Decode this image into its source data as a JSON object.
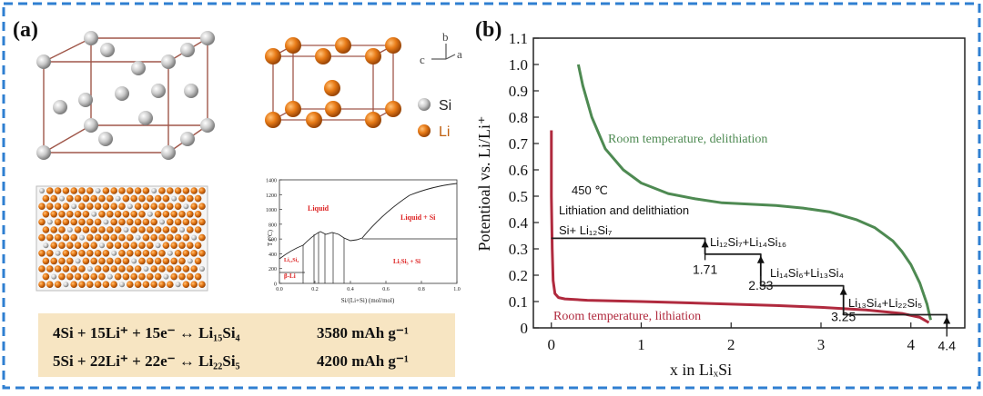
{
  "panel_a": {
    "label": "(a)",
    "axes_labels": {
      "b": "b",
      "c": "c",
      "a": "a"
    },
    "legend": {
      "si": "Si",
      "li": "Li"
    },
    "phase_diagram": {
      "ylabel": "T (°C)",
      "xlabel": "Si/(Li+Si) (mol/mol)",
      "yticks": [
        "0",
        "200",
        "400",
        "600",
        "800",
        "1000",
        "1200",
        "1400"
      ],
      "xticks": [
        "0.0",
        "0.2",
        "0.4",
        "0.6",
        "0.8",
        "1.0"
      ],
      "regions": {
        "liquid": "Liquid",
        "liquid_si": "Liquid + Si",
        "li7si3_si": "Li₇Si₃ + Si",
        "li13si4": "Li₁₃Si₄",
        "beta_li": "β-Li"
      }
    },
    "equations": [
      {
        "reaction": "4Si + 15Li⁺ + 15e⁻ ↔ Li₁₅Si₄",
        "capacity": "3580 mAh g⁻¹"
      },
      {
        "reaction": "5Si + 22Li⁺ + 22e⁻  ↔ Li₂₂Si₅",
        "capacity": "4200 mAh g⁻¹"
      }
    ]
  },
  "panel_b": {
    "label": "(b)",
    "colors": {
      "delith": "#4e8a52",
      "lith": "#b02a3e",
      "step": "#222222"
    },
    "chart_data": {
      "type": "line",
      "xlabel": "x in LiₓSi",
      "ylabel": "Potentioal vs. Li/Li⁺",
      "xlim": [
        -0.2,
        4.6
      ],
      "ylim": [
        0,
        1.1
      ],
      "xticks": [
        "0",
        "1",
        "2",
        "3",
        "4"
      ],
      "yticks": [
        "0",
        "0.1",
        "0.2",
        "0.3",
        "0.4",
        "0.5",
        "0.6",
        "0.7",
        "0.8",
        "0.9",
        "1.0",
        "1.1"
      ],
      "series": [
        {
          "name": "Room temperature, delithiation",
          "x": [
            0.3,
            0.35,
            0.45,
            0.6,
            0.8,
            1.0,
            1.3,
            1.6,
            1.9,
            2.2,
            2.5,
            2.8,
            3.1,
            3.4,
            3.6,
            3.8,
            3.9,
            4.0,
            4.1,
            4.18,
            4.22
          ],
          "y": [
            1.0,
            0.92,
            0.8,
            0.68,
            0.6,
            0.55,
            0.51,
            0.49,
            0.475,
            0.47,
            0.465,
            0.455,
            0.44,
            0.41,
            0.38,
            0.33,
            0.29,
            0.24,
            0.17,
            0.09,
            0.03
          ]
        },
        {
          "name": "Room temperature, lithiation",
          "x": [
            0.0,
            0.0,
            0.01,
            0.02,
            0.04,
            0.08,
            0.15,
            0.4,
            1.0,
            1.5,
            2.0,
            2.5,
            3.0,
            3.5,
            3.9,
            4.1,
            4.2
          ],
          "y": [
            0.75,
            0.5,
            0.3,
            0.18,
            0.13,
            0.115,
            0.11,
            0.105,
            0.1,
            0.095,
            0.09,
            0.085,
            0.078,
            0.068,
            0.055,
            0.04,
            0.02
          ]
        },
        {
          "name": "450 °C",
          "x": [
            0.0,
            1.71,
            1.71,
            2.33,
            2.33,
            3.25,
            3.25,
            4.4,
            4.4
          ],
          "y": [
            0.34,
            0.34,
            0.28,
            0.28,
            0.16,
            0.16,
            0.05,
            0.05,
            0.0
          ]
        }
      ],
      "annotations": {
        "temp": "450 ℃",
        "process": "Lithiation and delithiation",
        "phase1": "Si+ Li₁₂Si₇",
        "phase2": "Li₁₂Si₇+Li₁₄Si₁₆",
        "phase3": "Li₁₄Si₆+Li₁₃Si₄",
        "phase4": "Li₁₃Si₄+Li₂₂Si₅",
        "delith_label": "Room temperature, delithiation",
        "lith_label": "Room temperature, lithiation",
        "step_markers": [
          {
            "x": 1.71,
            "y": 0.34,
            "label": "1.71",
            "side": "below"
          },
          {
            "x": 2.33,
            "y": 0.28,
            "label": "2.33",
            "side": "below"
          },
          {
            "x": 3.25,
            "y": 0.16,
            "label": "3.25",
            "side": "below"
          },
          {
            "x": 4.4,
            "y": 0.05,
            "label": "4.4",
            "side": "below"
          }
        ]
      }
    }
  }
}
